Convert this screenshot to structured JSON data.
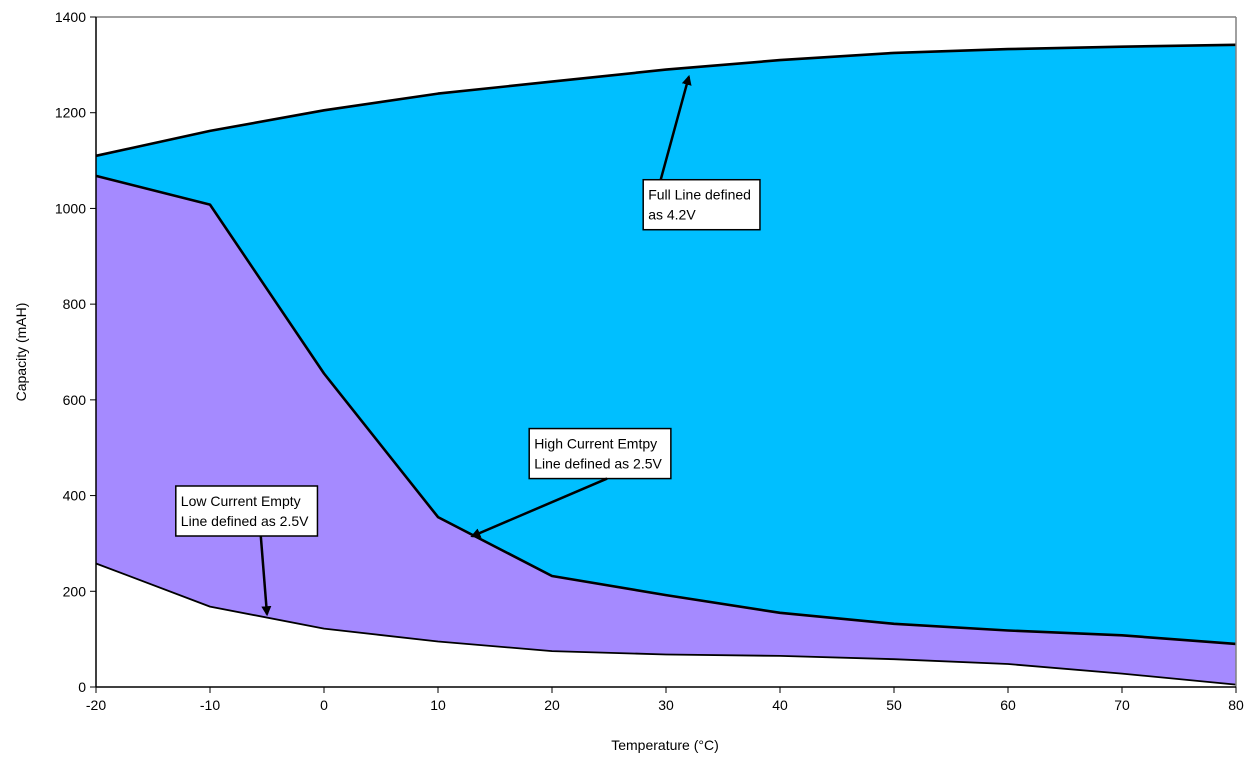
{
  "chart_data": {
    "type": "area",
    "title": "",
    "xlabel": "Temperature (°C)",
    "ylabel": "Capacity (mAH)",
    "xlim": [
      -20,
      80
    ],
    "ylim": [
      0,
      1400
    ],
    "x_ticks": [
      -20,
      -10,
      0,
      10,
      20,
      30,
      40,
      50,
      60,
      70,
      80
    ],
    "y_ticks": [
      0,
      200,
      400,
      600,
      800,
      1000,
      1200,
      1400
    ],
    "grid": false,
    "legend": "none",
    "series": [
      {
        "x": [
          -20,
          -10,
          0,
          10,
          20,
          30,
          40,
          50,
          60,
          70,
          80
        ],
        "values": [
          1110,
          1162,
          1205,
          1240,
          1265,
          1290,
          1310,
          1325,
          1333,
          1338,
          1342
        ],
        "fill": "#00bfff"
      },
      {
        "x": [
          -20,
          -10,
          0,
          10,
          20,
          30,
          40,
          50,
          60,
          70,
          80
        ],
        "values": [
          1068,
          1008,
          655,
          355,
          232,
          192,
          155,
          132,
          118,
          108,
          90
        ],
        "fill": "#a58aff"
      },
      {
        "x": [
          -20,
          -10,
          0,
          10,
          20,
          30,
          40,
          50,
          60,
          70,
          80
        ],
        "values": [
          258,
          168,
          122,
          95,
          75,
          68,
          65,
          58,
          48,
          28,
          5
        ],
        "fill": "#ffffff"
      }
    ],
    "annotations": [
      {
        "lines": [
          "Full Line defined",
          "as 4.2V"
        ],
        "box_at": [
          28,
          1060
        ],
        "arrow_to": [
          32,
          1275
        ]
      },
      {
        "lines": [
          "High Current Emtpy",
          "Line defined as 2.5V"
        ],
        "box_at": [
          18,
          540
        ],
        "arrow_to": [
          13,
          315
        ]
      },
      {
        "lines": [
          "Low Current Empty",
          "Line defined as 2.5V"
        ],
        "box_at": [
          -13,
          420
        ],
        "arrow_to": [
          -5,
          152
        ]
      }
    ]
  }
}
